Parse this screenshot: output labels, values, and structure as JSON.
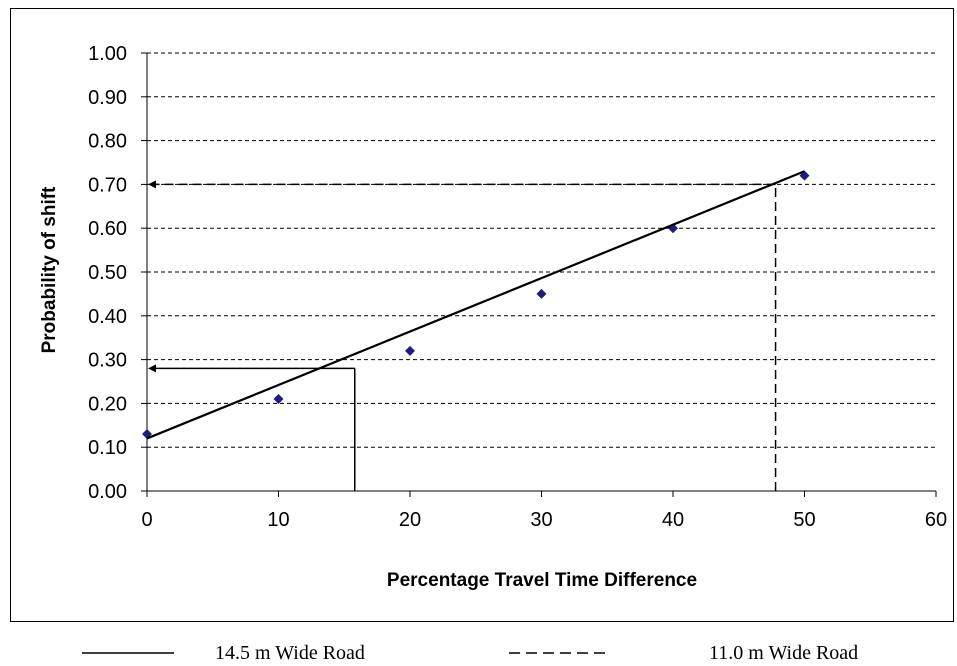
{
  "chart_data": {
    "type": "scatter",
    "title": "",
    "xlabel": "Percentage Travel Time Difference",
    "ylabel": "Probability of shift",
    "xlim": [
      0,
      60
    ],
    "ylim": [
      0,
      1
    ],
    "x_ticks": [
      "0",
      "10",
      "20",
      "30",
      "40",
      "50",
      "60"
    ],
    "y_ticks": [
      "0.00",
      "0.10",
      "0.20",
      "0.30",
      "0.40",
      "0.50",
      "0.60",
      "0.70",
      "0.80",
      "0.90",
      "1.00"
    ],
    "grid": "horizontal dashed",
    "series": [
      {
        "style": "markers",
        "marker": "diamond",
        "color": "#1f1f7a",
        "x": [
          0,
          10,
          20,
          30,
          40,
          50
        ],
        "y": [
          0.13,
          0.21,
          0.32,
          0.45,
          0.6,
          0.72
        ]
      },
      {
        "style": "line",
        "color": "#000000",
        "x": [
          0,
          50
        ],
        "y": [
          0.12,
          0.73
        ]
      }
    ],
    "reference_lines": [
      {
        "style": "solid",
        "x": 15.8,
        "y": 0.28
      },
      {
        "style": "dashed",
        "x": 47.8,
        "y": 0.7
      }
    ],
    "legend": {
      "placement": "bottom",
      "entries": [
        {
          "label": "14.5 m Wide Road",
          "style": "solid"
        },
        {
          "label": "11.0 m Wide Road",
          "style": "dashed"
        }
      ]
    }
  }
}
